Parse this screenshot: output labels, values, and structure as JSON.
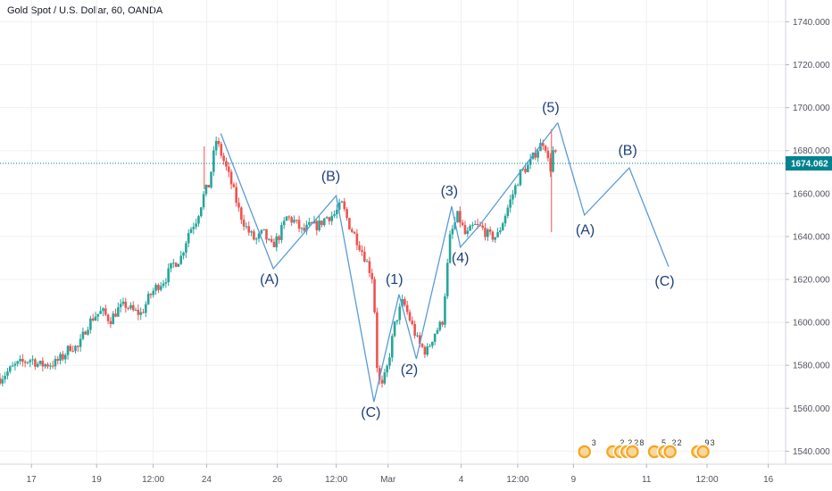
{
  "header": {
    "title": "Gold Spot / U.S. Dollar, 60, OANDA"
  },
  "colors": {
    "up": "#26a69a",
    "down": "#ef5350",
    "wave": "#5b9bd5",
    "wave_label": "#1f3f7a",
    "last_price_line": "#00838f",
    "grid": "#eef0f3",
    "axis_text": "#50535e",
    "event_flag": "#f5a623"
  },
  "chart_data": {
    "type": "candlestick",
    "symbol": "XAUUSD",
    "timeframe": "60",
    "ylim": [
      1536,
      1746
    ],
    "xlim": [
      0,
      100
    ],
    "y_ticks": [
      "1740.000",
      "1720.000",
      "1700.000",
      "1680.000",
      "1660.000",
      "1640.000",
      "1620.000",
      "1600.000",
      "1580.000",
      "1560.000",
      "1540.000"
    ],
    "y_tick_values": [
      1740,
      1720,
      1700,
      1680,
      1660,
      1640,
      1620,
      1600,
      1580,
      1560,
      1540
    ],
    "x_ticks": [
      {
        "label": "17",
        "x": 4.0
      },
      {
        "label": "19",
        "x": 12.3
      },
      {
        "label": "12:00",
        "x": 19.5
      },
      {
        "label": "24",
        "x": 26.3
      },
      {
        "label": "26",
        "x": 35.3
      },
      {
        "label": "12:00",
        "x": 42.8
      },
      {
        "label": "Mar",
        "x": 49.4
      },
      {
        "label": "4",
        "x": 58.7
      },
      {
        "label": "12:00",
        "x": 65.9
      },
      {
        "label": "9",
        "x": 73.0
      },
      {
        "label": "11",
        "x": 82.3
      },
      {
        "label": "12:00",
        "x": 90.0
      },
      {
        "label": "16",
        "x": 97.8
      }
    ],
    "last_price": 1674.062,
    "last_price_label": "1674.062",
    "price_path": [
      [
        0,
        1574
      ],
      [
        2,
        1580
      ],
      [
        4,
        1583
      ],
      [
        5,
        1580
      ],
      [
        7,
        1581
      ],
      [
        8,
        1584
      ],
      [
        9,
        1589
      ],
      [
        10,
        1588
      ],
      [
        11,
        1598
      ],
      [
        12,
        1603
      ],
      [
        13,
        1605
      ],
      [
        14,
        1601
      ],
      [
        15,
        1606
      ],
      [
        16,
        1608
      ],
      [
        17,
        1605
      ],
      [
        18,
        1604
      ],
      [
        19,
        1612
      ],
      [
        20,
        1617
      ],
      [
        21,
        1620
      ],
      [
        22,
        1627
      ],
      [
        23,
        1630
      ],
      [
        24,
        1642
      ],
      [
        25,
        1648
      ],
      [
        26,
        1660
      ],
      [
        26.6,
        1664
      ],
      [
        27.5,
        1685
      ],
      [
        28.5,
        1675
      ],
      [
        29.5,
        1664
      ],
      [
        30.5,
        1651
      ],
      [
        31.5,
        1643
      ],
      [
        32.5,
        1638
      ],
      [
        33.5,
        1642
      ],
      [
        34.5,
        1635
      ],
      [
        35.5,
        1640
      ],
      [
        36.5,
        1649
      ],
      [
        37.5,
        1647
      ],
      [
        38.5,
        1642
      ],
      [
        39.5,
        1645
      ],
      [
        40.5,
        1645
      ],
      [
        41.5,
        1649
      ],
      [
        42.5,
        1650
      ],
      [
        43.5,
        1655
      ],
      [
        44.5,
        1645
      ],
      [
        45.5,
        1638
      ],
      [
        46.5,
        1630
      ],
      [
        47.5,
        1620
      ],
      [
        48,
        1580
      ],
      [
        48.5,
        1568
      ],
      [
        49.3,
        1579
      ],
      [
        50.3,
        1600
      ],
      [
        51.3,
        1610
      ],
      [
        52.3,
        1600
      ],
      [
        53.3,
        1590
      ],
      [
        54.3,
        1586
      ],
      [
        55.3,
        1595
      ],
      [
        56.3,
        1600
      ],
      [
        57.3,
        1640
      ],
      [
        58.3,
        1650
      ],
      [
        59.3,
        1640
      ],
      [
        60.3,
        1645
      ],
      [
        61.3,
        1644
      ],
      [
        62.3,
        1640
      ],
      [
        63.3,
        1640
      ],
      [
        64.3,
        1650
      ],
      [
        65.3,
        1660
      ],
      [
        66.3,
        1670
      ],
      [
        67.3,
        1673
      ],
      [
        68.3,
        1680
      ],
      [
        69.3,
        1685
      ],
      [
        70,
        1670
      ],
      [
        70.5,
        1682
      ],
      [
        71,
        1672
      ]
    ],
    "spikes": [
      {
        "x": 26.0,
        "high": 1682,
        "low": 1662
      },
      {
        "x": 70.2,
        "high": 1690,
        "low": 1642
      }
    ],
    "wave_lines": [
      [
        [
          28.1,
          1688
        ],
        [
          34.8,
          1625
        ],
        [
          42.8,
          1659
        ],
        [
          47.6,
          1563
        ],
        [
          50.8,
          1613
        ],
        [
          53.0,
          1583
        ],
        [
          57.5,
          1654
        ],
        [
          58.6,
          1635
        ],
        [
          61.0,
          1645
        ],
        [
          71.0,
          1693
        ]
      ],
      [
        [
          71.0,
          1693
        ],
        [
          74.4,
          1650
        ],
        [
          80.1,
          1672
        ],
        [
          85.1,
          1626
        ]
      ]
    ],
    "wave_labels": [
      {
        "text": "(A)",
        "x": 34.3,
        "y": 1618
      },
      {
        "text": "(B)",
        "x": 42.1,
        "y": 1666
      },
      {
        "text": "(C)",
        "x": 47.2,
        "y": 1556
      },
      {
        "text": "(1)",
        "x": 50.2,
        "y": 1618
      },
      {
        "text": "(2)",
        "x": 52.1,
        "y": 1576
      },
      {
        "text": "(3)",
        "x": 57.2,
        "y": 1659
      },
      {
        "text": "(4)",
        "x": 58.6,
        "y": 1628
      },
      {
        "text": "(5)",
        "x": 70.1,
        "y": 1698
      },
      {
        "text": "(A)",
        "x": 74.5,
        "y": 1641
      },
      {
        "text": "(B)",
        "x": 79.9,
        "y": 1678
      },
      {
        "text": "(C)",
        "x": 84.6,
        "y": 1617
      }
    ],
    "event_flags": [
      {
        "x": 74.4,
        "count": "3"
      },
      {
        "x": 78.0,
        "count": "2"
      },
      {
        "x": 79.0,
        "count": "2"
      },
      {
        "x": 79.8,
        "count": "2"
      },
      {
        "x": 80.5,
        "count": "8"
      },
      {
        "x": 83.3,
        "count": "5"
      },
      {
        "x": 84.6,
        "count": "2"
      },
      {
        "x": 85.3,
        "count": "2"
      },
      {
        "x": 88.8,
        "count": "9"
      },
      {
        "x": 89.5,
        "count": "3"
      }
    ]
  }
}
